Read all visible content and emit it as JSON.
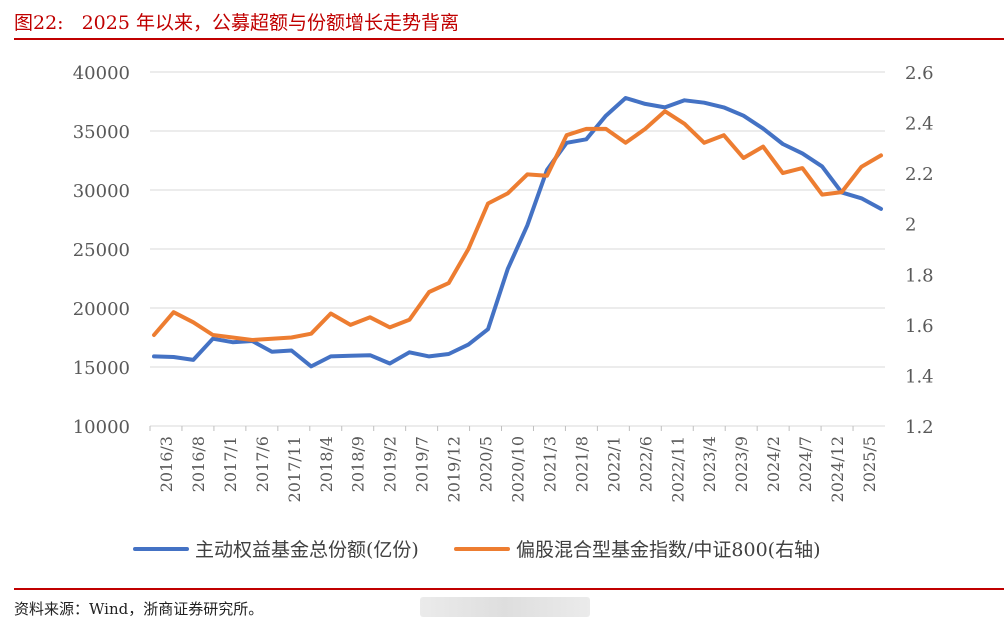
{
  "header": {
    "figure_no": "图22:",
    "title": "2025 年以来，公募超额与份额增长走势背离"
  },
  "source": {
    "text": "资料来源：Wind，浙商证券研究所。"
  },
  "colors": {
    "accent": "#c00000",
    "series1": "#4472c4",
    "series2": "#ed7d31"
  },
  "chart_data": {
    "type": "line",
    "x_tick_labels": [
      "2016/3",
      "2016/8",
      "2017/1",
      "2017/6",
      "2017/11",
      "2018/4",
      "2018/9",
      "2019/2",
      "2019/7",
      "2019/12",
      "2020/5",
      "2020/10",
      "2021/3",
      "2021/8",
      "2022/1",
      "2022/6",
      "2022/11",
      "2023/4",
      "2023/9",
      "2024/2",
      "2024/7",
      "2024/12",
      "2025/5"
    ],
    "y_left": {
      "range": [
        10000,
        40000
      ],
      "ticks": [
        "10000",
        "15000",
        "20000",
        "25000",
        "30000",
        "35000",
        "40000"
      ]
    },
    "y_right": {
      "range": [
        1.2,
        2.6
      ],
      "ticks": [
        "1.2",
        "1.4",
        "1.6",
        "1.8",
        "2",
        "2.2",
        "2.4",
        "2.6"
      ]
    },
    "grid": "horizontal",
    "legend_position": "bottom",
    "series": [
      {
        "name": "主动权益基金总份额(亿份)",
        "axis": "left",
        "color": "#4472c4",
        "values": [
          15900,
          15850,
          15600,
          17400,
          17100,
          17200,
          16300,
          16400,
          15050,
          15900,
          15950,
          16000,
          15300,
          16250,
          15900,
          16100,
          16900,
          18200,
          23300,
          27000,
          31700,
          34000,
          34300,
          36300,
          37800,
          37300,
          37000,
          37600,
          37400,
          37000,
          36300,
          35200,
          33900,
          33100,
          32000,
          29800,
          29300,
          28400
        ]
      },
      {
        "name": "偏股混合型基金指数/中证800(右轴)",
        "axis": "right",
        "color": "#ed7d31",
        "values": [
          1.56,
          1.65,
          1.61,
          1.56,
          1.55,
          1.54,
          1.545,
          1.55,
          1.565,
          1.645,
          1.6,
          1.63,
          1.59,
          1.62,
          1.73,
          1.765,
          1.9,
          2.08,
          2.12,
          2.195,
          2.19,
          2.35,
          2.375,
          2.375,
          2.32,
          2.375,
          2.445,
          2.395,
          2.32,
          2.35,
          2.26,
          2.305,
          2.2,
          2.22,
          2.115,
          2.125,
          2.225,
          2.27
        ]
      }
    ]
  }
}
